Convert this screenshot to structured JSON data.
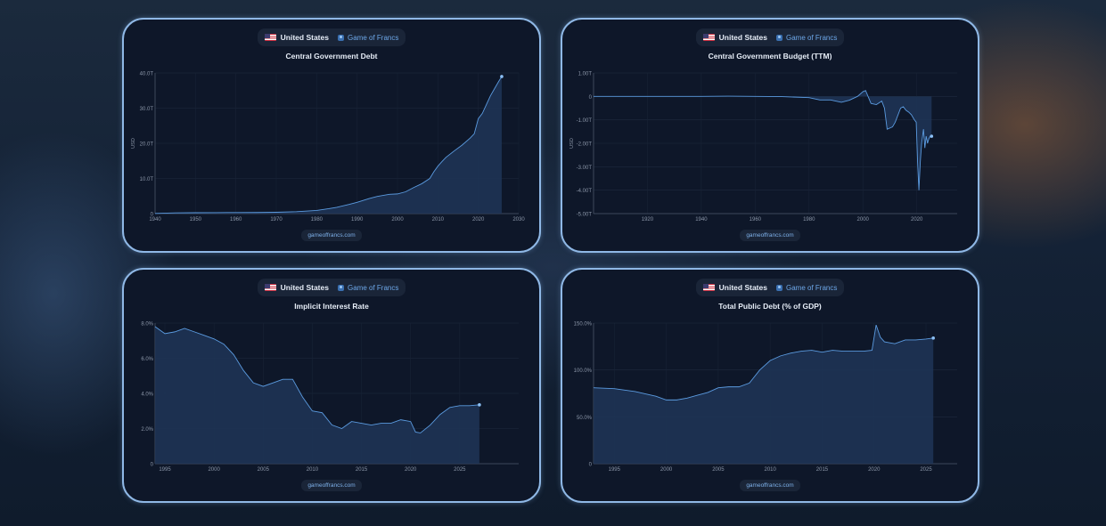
{
  "cards": [
    {
      "country": "United States",
      "brand": "Game of Francs",
      "title": "Central Government Debt",
      "footer": "gameoffrancs.com"
    },
    {
      "country": "United States",
      "brand": "Game of Francs",
      "title": "Central Government Budget (TTM)",
      "footer": "gameoffrancs.com"
    },
    {
      "country": "United States",
      "brand": "Game of Francs",
      "title": "Implicit Interest Rate",
      "footer": "gameoffrancs.com"
    },
    {
      "country": "United States",
      "brand": "Game of Francs",
      "title": "Total Public Debt (% of GDP)",
      "footer": "gameoffrancs.com"
    }
  ],
  "chart_data": [
    {
      "type": "area",
      "title": "Central Government Debt",
      "ylabel": "USD",
      "xlim": [
        1940,
        2030
      ],
      "ylim": [
        0,
        40
      ],
      "xticks": [
        "1940",
        "1950",
        "1960",
        "1970",
        "1980",
        "1990",
        "2000",
        "2010",
        "2020",
        "2030"
      ],
      "yticks": [
        "0",
        "10.0T",
        "20.0T",
        "30.0T",
        "40.0T"
      ],
      "x": [
        1940,
        1945,
        1950,
        1955,
        1960,
        1965,
        1970,
        1975,
        1980,
        1983,
        1985,
        1988,
        1990,
        1993,
        1995,
        1998,
        2000,
        2002,
        2004,
        2006,
        2008,
        2009,
        2010,
        2011,
        2012,
        2014,
        2016,
        2018,
        2019,
        2020,
        2021,
        2022,
        2023,
        2024,
        2025,
        2025.8
      ],
      "values": [
        0.05,
        0.2,
        0.25,
        0.28,
        0.3,
        0.32,
        0.38,
        0.55,
        0.9,
        1.4,
        1.8,
        2.6,
        3.2,
        4.3,
        4.9,
        5.5,
        5.6,
        6.2,
        7.4,
        8.5,
        10,
        11.9,
        13.5,
        14.8,
        16,
        17.8,
        19.5,
        21.5,
        22.7,
        27,
        28.5,
        31,
        33.5,
        35.5,
        37.5,
        39
      ]
    },
    {
      "type": "area",
      "title": "Central Government Budget (TTM)",
      "ylabel": "USD",
      "xlim": [
        1900,
        2035
      ],
      "ylim": [
        -5,
        1
      ],
      "xticks": [
        "1920",
        "1940",
        "1960",
        "1980",
        "2000",
        "2020"
      ],
      "yticks": [
        "1.00T",
        "0",
        "-1.00T",
        "-2.00T",
        "-3.00T",
        "-4.00T",
        "-5.00T"
      ],
      "x": [
        1900,
        1940,
        1950,
        1960,
        1970,
        1975,
        1980,
        1984,
        1988,
        1992,
        1995,
        1998,
        2000,
        2001,
        2003,
        2005,
        2007,
        2008,
        2009,
        2010,
        2011,
        2012,
        2014,
        2015,
        2016,
        2017,
        2018,
        2019,
        2019.8,
        2020.3,
        2020.8,
        2021.3,
        2021.8,
        2022.5,
        2023,
        2023.5,
        2024,
        2024.5,
        2025,
        2025.5
      ],
      "values": [
        0,
        0,
        0.01,
        0,
        -0.01,
        -0.03,
        -0.05,
        -0.15,
        -0.15,
        -0.25,
        -0.16,
        0,
        0.2,
        0.25,
        -0.3,
        -0.35,
        -0.2,
        -0.5,
        -1.4,
        -1.35,
        -1.3,
        -1.1,
        -0.5,
        -0.44,
        -0.59,
        -0.67,
        -0.78,
        -0.98,
        -1.1,
        -2.8,
        -4.0,
        -2.8,
        -2.0,
        -1.4,
        -2.2,
        -1.7,
        -2.0,
        -1.8,
        -1.7,
        -1.7
      ]
    },
    {
      "type": "area",
      "title": "Implicit Interest Rate",
      "xlim": [
        1994,
        2031
      ],
      "ylim": [
        0,
        8
      ],
      "xticks": [
        "1995",
        "2000",
        "2005",
        "2010",
        "2015",
        "2020",
        "2025"
      ],
      "yticks": [
        "0",
        "2.0%",
        "4.0%",
        "6.0%",
        "8.0%"
      ],
      "x": [
        1994,
        1995,
        1996,
        1997,
        1998,
        1999,
        2000,
        2001,
        2002,
        2003,
        2004,
        2005,
        2006,
        2007,
        2008,
        2009,
        2010,
        2011,
        2012,
        2013,
        2014,
        2015,
        2016,
        2017,
        2018,
        2019,
        2020,
        2020.5,
        2021,
        2022,
        2023,
        2024,
        2025,
        2026,
        2027
      ],
      "values": [
        7.8,
        7.4,
        7.5,
        7.7,
        7.5,
        7.3,
        7.1,
        6.8,
        6.2,
        5.3,
        4.6,
        4.4,
        4.6,
        4.8,
        4.8,
        3.8,
        3.0,
        2.9,
        2.2,
        2.0,
        2.4,
        2.3,
        2.2,
        2.3,
        2.3,
        2.5,
        2.4,
        1.8,
        1.75,
        2.2,
        2.8,
        3.2,
        3.3,
        3.3,
        3.35
      ]
    },
    {
      "type": "area",
      "title": "Total Public Debt (% of GDP)",
      "xlim": [
        1993,
        2028
      ],
      "ylim": [
        0,
        150
      ],
      "xticks": [
        "1995",
        "2000",
        "2005",
        "2010",
        "2015",
        "2020",
        "2025"
      ],
      "yticks": [
        "0",
        "50.0%",
        "100.0%",
        "150.0%"
      ],
      "x": [
        1993,
        1995,
        1997,
        1999,
        2000,
        2001,
        2002,
        2003,
        2004,
        2005,
        2006,
        2007,
        2008,
        2009,
        2010,
        2011,
        2012,
        2013,
        2014,
        2015,
        2016,
        2017,
        2018,
        2019,
        2019.8,
        2020.2,
        2020.6,
        2021,
        2022,
        2023,
        2024,
        2025,
        2025.7
      ],
      "values": [
        81,
        80,
        77,
        72,
        68,
        68,
        70,
        73,
        76,
        81,
        82,
        82,
        86,
        100,
        110,
        115,
        118,
        120,
        121,
        119,
        121,
        120,
        120,
        120,
        121,
        148,
        135,
        130,
        128,
        132,
        132,
        133,
        134
      ]
    }
  ]
}
